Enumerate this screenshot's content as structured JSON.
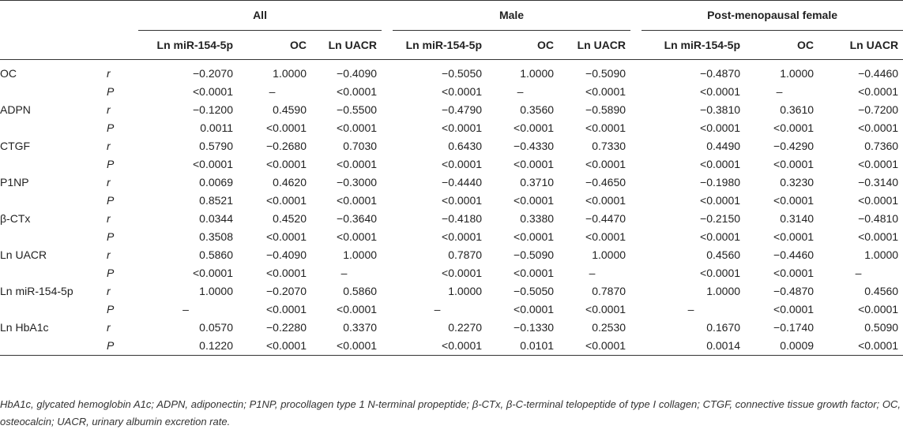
{
  "groups": [
    "All",
    "Male",
    "Post-menopausal female"
  ],
  "subcolumns": [
    "Ln miR-154-5p",
    "OC",
    "Ln UACR"
  ],
  "stat_labels": {
    "r": "r",
    "p": "P"
  },
  "rows": [
    {
      "variable": "OC",
      "r": [
        "−0.2070",
        "1.0000",
        "−0.4090",
        "−0.5050",
        "1.0000",
        "−0.5090",
        "−0.4870",
        "1.0000",
        "−0.4460"
      ],
      "p": [
        "<0.0001",
        "–",
        "<0.0001",
        "<0.0001",
        "–",
        "<0.0001",
        "<0.0001",
        "–",
        "<0.0001"
      ]
    },
    {
      "variable": "ADPN",
      "r": [
        "−0.1200",
        "0.4590",
        "−0.5500",
        "−0.4790",
        "0.3560",
        "−0.5890",
        "−0.3810",
        "0.3610",
        "−0.7200"
      ],
      "p": [
        "0.0011",
        "<0.0001",
        "<0.0001",
        "<0.0001",
        "<0.0001",
        "<0.0001",
        "<0.0001",
        "<0.0001",
        "<0.0001"
      ]
    },
    {
      "variable": "CTGF",
      "r": [
        "0.5790",
        "−0.2680",
        "0.7030",
        "0.6430",
        "−0.4330",
        "0.7330",
        "0.4490",
        "−0.4290",
        "0.7360"
      ],
      "p": [
        "<0.0001",
        "<0.0001",
        "<0.0001",
        "<0.0001",
        "<0.0001",
        "<0.0001",
        "<0.0001",
        "<0.0001",
        "<0.0001"
      ]
    },
    {
      "variable": "P1NP",
      "r": [
        "0.0069",
        "0.4620",
        "−0.3000",
        "−0.4440",
        "0.3710",
        "−0.4650",
        "−0.1980",
        "0.3230",
        "−0.3140"
      ],
      "p": [
        "0.8521",
        "<0.0001",
        "<0.0001",
        "<0.0001",
        "<0.0001",
        "<0.0001",
        "<0.0001",
        "<0.0001",
        "<0.0001"
      ]
    },
    {
      "variable": "β-CTx",
      "r": [
        "0.0344",
        "0.4520",
        "−0.3640",
        "−0.4180",
        "0.3380",
        "−0.4470",
        "−0.2150",
        "0.3140",
        "−0.4810"
      ],
      "p": [
        "0.3508",
        "<0.0001",
        "<0.0001",
        "<0.0001",
        "<0.0001",
        "<0.0001",
        "<0.0001",
        "<0.0001",
        "<0.0001"
      ]
    },
    {
      "variable": "Ln UACR",
      "r": [
        "0.5860",
        "−0.4090",
        "1.0000",
        "0.7870",
        "−0.5090",
        "1.0000",
        "0.4560",
        "−0.4460",
        "1.0000"
      ],
      "p": [
        "<0.0001",
        "<0.0001",
        "–",
        "<0.0001",
        "<0.0001",
        "–",
        "<0.0001",
        "<0.0001",
        "–"
      ]
    },
    {
      "variable": "Ln miR-154-5p",
      "r": [
        "1.0000",
        "−0.2070",
        "0.5860",
        "1.0000",
        "−0.5050",
        "0.7870",
        "1.0000",
        "−0.4870",
        "0.4560"
      ],
      "p": [
        "–",
        "<0.0001",
        "<0.0001",
        "–",
        "<0.0001",
        "<0.0001",
        "–",
        "<0.0001",
        "<0.0001"
      ]
    },
    {
      "variable": "Ln HbA1c",
      "r": [
        "0.0570",
        "−0.2280",
        "0.3370",
        "0.2270",
        "−0.1330",
        "0.2530",
        "0.1670",
        "−0.1740",
        "0.5090"
      ],
      "p": [
        "0.1220",
        "<0.0001",
        "<0.0001",
        "<0.0001",
        "0.0101",
        "<0.0001",
        "0.0014",
        "0.0009",
        "<0.0001"
      ]
    }
  ],
  "footnote": "HbA1c, glycated hemoglobin A1c; ADPN, adiponectin; P1NP, procollagen type 1 N-terminal propeptide; β-CTx, β-C-terminal telopeptide of type I collagen; CTGF, connective tissue growth factor; OC, osteocalcin; UACR, urinary albumin excretion rate."
}
